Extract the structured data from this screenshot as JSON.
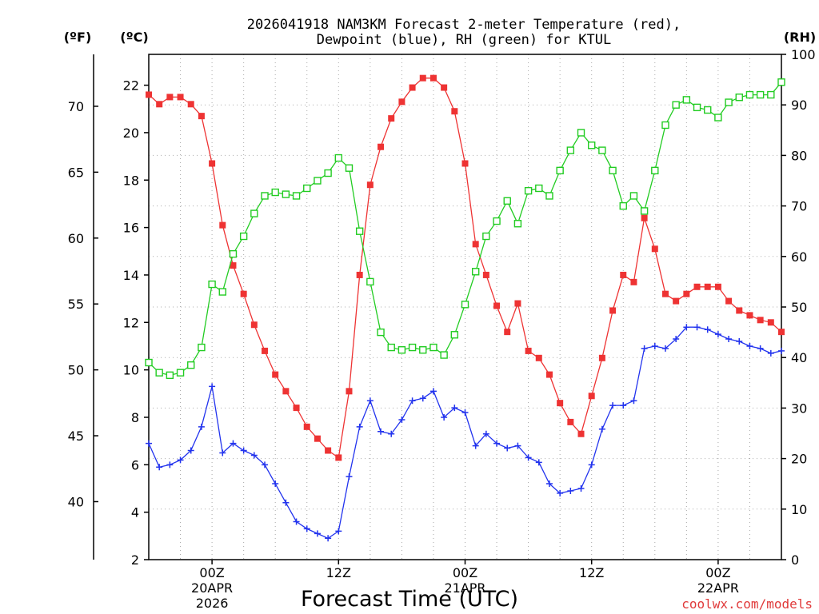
{
  "chart_data": {
    "type": "line",
    "title_line1": "2026041918 NAM3KM Forecast 2-meter Temperature (red),",
    "title_line2": "Dewpoint (blue), RH (green) for KTUL",
    "xlabel": "Forecast Time (UTC)",
    "left_outer_unit": "(ºF)",
    "left_inner_unit": "(ºC)",
    "right_unit": "(RH)",
    "credit": "coolwx.com/models",
    "hours_range": [
      -6,
      54
    ],
    "celsius_range": [
      2,
      23.3
    ],
    "rh_range": [
      0,
      100
    ],
    "celsius_ticks": [
      2,
      4,
      6,
      8,
      10,
      12,
      14,
      16,
      18,
      20,
      22
    ],
    "fahrenheit_ticks": [
      40,
      45,
      50,
      55,
      60,
      65,
      70
    ],
    "rh_ticks": [
      0,
      10,
      20,
      30,
      40,
      50,
      60,
      70,
      80,
      90,
      100
    ],
    "x_ticks": [
      {
        "hour": 0,
        "label": "00Z",
        "date": "20APR",
        "year": "2026"
      },
      {
        "hour": 12,
        "label": "12Z",
        "date": "",
        "year": ""
      },
      {
        "hour": 24,
        "label": "00Z",
        "date": "21APR",
        "year": ""
      },
      {
        "hour": 36,
        "label": "12Z",
        "date": "",
        "year": ""
      },
      {
        "hour": 48,
        "label": "00Z",
        "date": "22APR",
        "year": ""
      }
    ],
    "series": [
      {
        "name": "Temperature",
        "unit": "C",
        "color": "#ee3333",
        "marker": "filled-square",
        "hours": [
          -6,
          -5,
          -4,
          -3,
          -2,
          -1,
          0,
          1,
          2,
          3,
          4,
          5,
          6,
          7,
          8,
          9,
          10,
          11,
          12,
          13,
          14,
          15,
          16,
          17,
          18,
          19,
          20,
          21,
          22,
          23,
          24,
          25,
          26,
          27,
          28,
          29,
          30,
          31,
          32,
          33,
          34,
          35,
          36,
          37,
          38,
          39,
          40,
          41,
          42,
          43,
          44,
          45,
          46,
          47,
          48,
          49,
          50,
          51,
          52,
          53,
          54
        ],
        "values": [
          21.6,
          21.2,
          21.5,
          21.5,
          21.2,
          20.7,
          18.7,
          16.1,
          14.4,
          13.2,
          11.9,
          10.8,
          9.8,
          9.1,
          8.4,
          7.6,
          7.1,
          6.6,
          6.3,
          9.1,
          14,
          17.8,
          19.4,
          20.6,
          21.3,
          21.9,
          22.3,
          22.3,
          21.9,
          20.9,
          18.7,
          15.3,
          14,
          12.7,
          11.6,
          12.8,
          10.8,
          10.5,
          9.8,
          8.6,
          7.8,
          7.3,
          8.9,
          10.5,
          12.5,
          14,
          13.7,
          16.4,
          15.1,
          13.2,
          12.9,
          13.2,
          13.5,
          13.5,
          13.5,
          12.9,
          12.5,
          12.3,
          12.1,
          12,
          11.6
        ]
      },
      {
        "name": "Dewpoint",
        "unit": "C",
        "color": "#2233ee",
        "marker": "plus",
        "hours": [
          -6,
          -5,
          -4,
          -3,
          -2,
          -1,
          0,
          1,
          2,
          3,
          4,
          5,
          6,
          7,
          8,
          9,
          10,
          11,
          12,
          13,
          14,
          15,
          16,
          17,
          18,
          19,
          20,
          21,
          22,
          23,
          24,
          25,
          26,
          27,
          28,
          29,
          30,
          31,
          32,
          33,
          34,
          35,
          36,
          37,
          38,
          39,
          40,
          41,
          42,
          43,
          44,
          45,
          46,
          47,
          48,
          49,
          50,
          51,
          52,
          53,
          54
        ],
        "values": [
          6.9,
          5.9,
          6,
          6.2,
          6.6,
          7.6,
          9.3,
          6.5,
          6.9,
          6.6,
          6.4,
          6,
          5.2,
          4.4,
          3.6,
          3.3,
          3.1,
          2.9,
          3.2,
          5.5,
          7.6,
          8.7,
          7.4,
          7.3,
          7.9,
          8.7,
          8.8,
          9.1,
          8,
          8.4,
          8.2,
          6.8,
          7.3,
          6.9,
          6.7,
          6.8,
          6.3,
          6.1,
          5.2,
          4.8,
          4.9,
          5,
          6,
          7.5,
          8.5,
          8.5,
          8.7,
          10.9,
          11,
          10.9,
          11.3,
          11.8,
          11.8,
          11.7,
          11.5,
          11.3,
          11.2,
          11,
          10.9,
          10.7,
          10.8
        ]
      },
      {
        "name": "RH",
        "unit": "%",
        "color": "#22cc22",
        "marker": "open-square",
        "hours": [
          -6,
          -5,
          -4,
          -3,
          -2,
          -1,
          0,
          1,
          2,
          3,
          4,
          5,
          6,
          7,
          8,
          9,
          10,
          11,
          12,
          13,
          14,
          15,
          16,
          17,
          18,
          19,
          20,
          21,
          22,
          23,
          24,
          25,
          26,
          27,
          28,
          29,
          30,
          31,
          32,
          33,
          34,
          35,
          36,
          37,
          38,
          39,
          40,
          41,
          42,
          43,
          44,
          45,
          46,
          47,
          48,
          49,
          50,
          51,
          52,
          53,
          54
        ],
        "values": [
          39,
          37,
          36.5,
          37,
          38.5,
          42,
          54.5,
          53,
          60.5,
          64,
          68.5,
          72,
          72.7,
          72.3,
          72,
          73.5,
          75,
          76.5,
          79.5,
          77.5,
          65,
          55,
          45,
          42,
          41.5,
          42,
          41.5,
          42,
          40.5,
          44.5,
          50.5,
          57,
          64,
          67,
          71,
          66.5,
          73,
          73.5,
          72,
          77,
          81,
          84.5,
          82,
          81,
          77,
          70,
          72,
          69,
          77,
          86,
          90,
          91,
          89.5,
          89,
          87.5,
          90.5,
          91.5,
          92,
          92,
          92,
          94.5
        ]
      }
    ]
  }
}
